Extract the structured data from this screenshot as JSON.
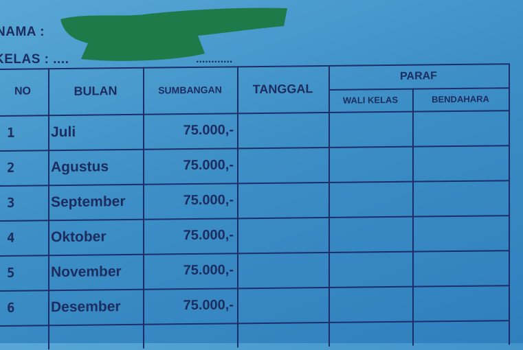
{
  "form": {
    "nama_label": "NAMA :",
    "kelas_label": "KELAS : ....",
    "kelas_dots": "............"
  },
  "table": {
    "headers": {
      "no": "NO",
      "bulan": "BULAN",
      "sumbangan": "SUMBANGAN",
      "tanggal": "TANGGAL",
      "paraf": "PARAF",
      "wali_kelas": "WALI KELAS",
      "bendahara": "BENDAHARA"
    },
    "rows": [
      {
        "no": "1",
        "bulan": "Juli",
        "sumbangan": "75.000,-"
      },
      {
        "no": "2",
        "bulan": "Agustus",
        "sumbangan": "75.000,-"
      },
      {
        "no": "3",
        "bulan": "September",
        "sumbangan": "75.000,-"
      },
      {
        "no": "4",
        "bulan": "Oktober",
        "sumbangan": "75.000,-"
      },
      {
        "no": "5",
        "bulan": "November",
        "sumbangan": "75.000,-"
      },
      {
        "no": "6",
        "bulan": "Desember",
        "sumbangan": "75.000,-"
      }
    ]
  },
  "colors": {
    "paper": "#3d8fc6",
    "ink": "#1c2c5e",
    "redaction": "#1f7a4a"
  }
}
